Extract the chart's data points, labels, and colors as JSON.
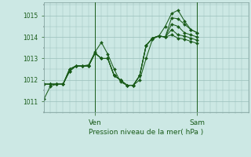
{
  "title": "Pression niveau de la mer( hPa )",
  "bg_color": "#cce8e4",
  "line_color": "#1a5c1a",
  "grid_color": "#9abfba",
  "ylim": [
    1010.5,
    1015.6
  ],
  "yticks": [
    1011,
    1012,
    1013,
    1014,
    1015
  ],
  "ven_x": 24,
  "sam_x": 72,
  "xlim": [
    0,
    96
  ],
  "series": [
    [
      0,
      1011.1,
      3,
      1011.7,
      6,
      1011.8,
      9,
      1011.8,
      12,
      1012.5,
      15,
      1012.65,
      18,
      1012.65,
      21,
      1012.7,
      24,
      1013.3,
      27,
      1013.75,
      30,
      1013.2,
      33,
      1012.5,
      36,
      1011.9,
      39,
      1011.75,
      42,
      1011.75,
      45,
      1012.0,
      48,
      1013.0,
      51,
      1013.9,
      54,
      1014.05,
      57,
      1014.5,
      60,
      1015.1,
      63,
      1015.25,
      66,
      1014.75,
      69,
      1014.35,
      72,
      1014.2
    ],
    [
      0,
      1011.8,
      3,
      1011.8,
      6,
      1011.8,
      9,
      1011.8,
      12,
      1012.4,
      15,
      1012.65,
      18,
      1012.65,
      21,
      1012.65,
      24,
      1013.25,
      27,
      1013.0,
      30,
      1013.0,
      33,
      1012.2,
      36,
      1012.0,
      39,
      1011.75,
      42,
      1011.75,
      45,
      1012.2,
      48,
      1013.6,
      51,
      1013.95,
      54,
      1014.05,
      57,
      1014.0,
      60,
      1014.9,
      63,
      1014.85,
      66,
      1014.6,
      69,
      1014.35,
      72,
      1014.2
    ],
    [
      0,
      1011.8,
      3,
      1011.8,
      6,
      1011.8,
      9,
      1011.8,
      12,
      1012.4,
      15,
      1012.65,
      18,
      1012.65,
      21,
      1012.65,
      24,
      1013.25,
      27,
      1013.0,
      30,
      1013.0,
      33,
      1012.2,
      36,
      1012.0,
      39,
      1011.75,
      42,
      1011.75,
      45,
      1012.2,
      48,
      1013.6,
      51,
      1013.95,
      54,
      1014.05,
      57,
      1014.0,
      60,
      1014.6,
      63,
      1014.5,
      66,
      1014.2,
      69,
      1014.1,
      72,
      1014.0
    ],
    [
      0,
      1011.8,
      3,
      1011.8,
      6,
      1011.8,
      9,
      1011.8,
      12,
      1012.4,
      15,
      1012.65,
      18,
      1012.65,
      21,
      1012.65,
      24,
      1013.25,
      27,
      1013.0,
      30,
      1013.0,
      33,
      1012.2,
      36,
      1012.0,
      39,
      1011.75,
      42,
      1011.75,
      45,
      1012.2,
      48,
      1013.6,
      51,
      1013.95,
      54,
      1014.05,
      57,
      1014.0,
      60,
      1014.35,
      63,
      1014.1,
      66,
      1014.05,
      69,
      1013.95,
      72,
      1013.85
    ],
    [
      0,
      1011.8,
      3,
      1011.8,
      6,
      1011.8,
      9,
      1011.8,
      12,
      1012.5,
      15,
      1012.65,
      18,
      1012.65,
      21,
      1012.65,
      24,
      1013.25,
      27,
      1013.0,
      30,
      1013.0,
      33,
      1012.2,
      36,
      1012.0,
      39,
      1011.75,
      42,
      1011.75,
      45,
      1012.2,
      48,
      1013.6,
      51,
      1013.95,
      54,
      1014.05,
      57,
      1014.0,
      60,
      1014.1,
      63,
      1013.95,
      66,
      1013.9,
      69,
      1013.8,
      72,
      1013.7
    ]
  ],
  "ytick_fontsize": 5.5,
  "xtick_fontsize": 6.5,
  "xlabel_fontsize": 6.5,
  "lw": 0.75,
  "markersize": 2.0
}
